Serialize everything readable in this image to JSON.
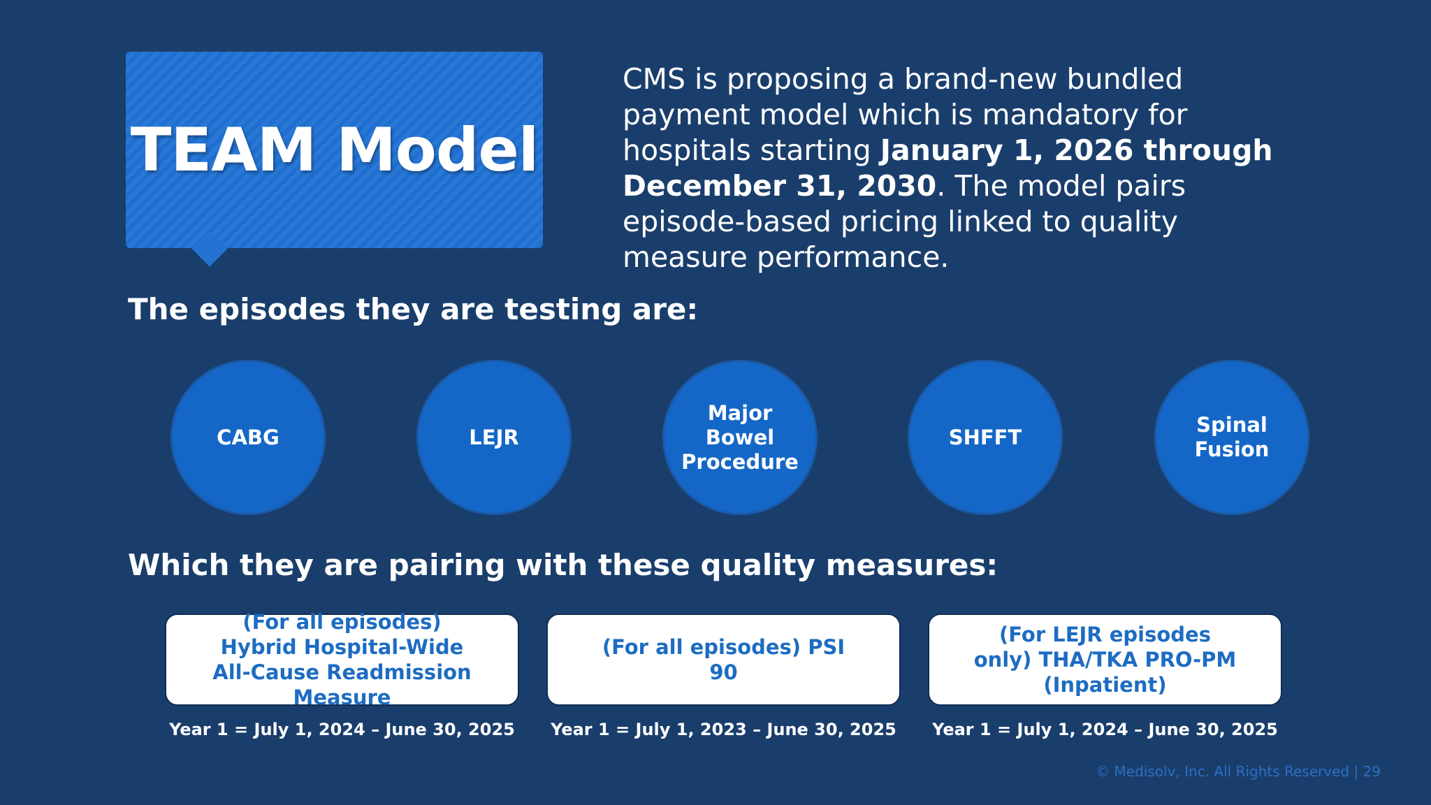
{
  "header": {
    "title": "TEAM Model",
    "paragraph": [
      "CMS is proposing a brand-new bundled payment model which is mandatory for hospitals starting ",
      "January 1, 2026 through December 31, 2030",
      ". The model pairs episode-based pricing linked to quality measure performance."
    ]
  },
  "episodes": {
    "heading": "The episodes they are testing are:",
    "items": [
      "CABG",
      "LEJR",
      "Major Bowel Procedure",
      "SHFFT",
      "Spinal Fusion"
    ]
  },
  "measures": {
    "heading": "Which they are pairing with these quality measures:",
    "items": [
      {
        "label": "(For all episodes) Hybrid Hospital-Wide All-Cause Readmission Measure",
        "period": "Year 1 = July 1, 2024 – June 30, 2025"
      },
      {
        "label": "(For all episodes) PSI 90",
        "period": "Year 1 = July 1, 2023 – June 30, 2025"
      },
      {
        "label": "(For LEJR episodes only) THA/TKA PRO-PM (Inpatient)",
        "period": "Year 1 = July 1, 2024 – June 30, 2025"
      }
    ]
  },
  "footer": "© Medisolv, Inc. All Rights Reserved | 29"
}
